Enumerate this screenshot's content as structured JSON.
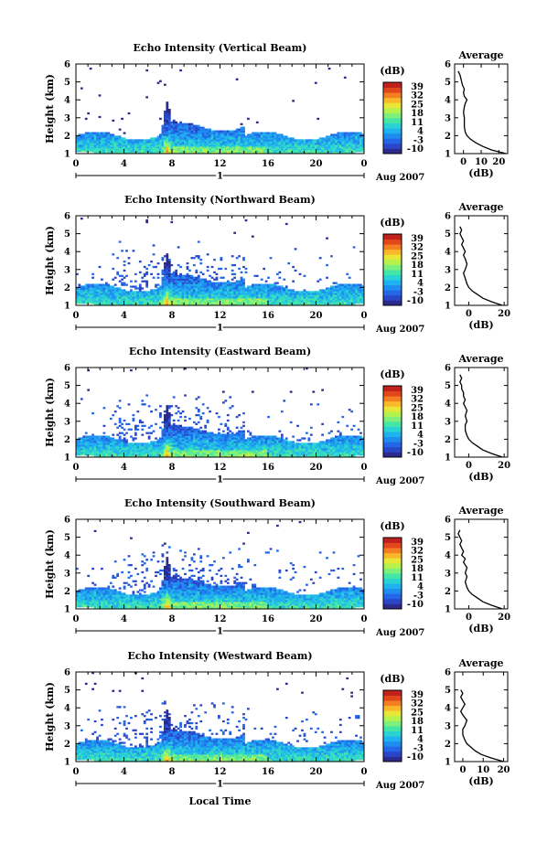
{
  "figure": {
    "x_axis_title": "Local Time",
    "date_label": "Aug 2007",
    "day_label": "1",
    "cbar_unit": "(dB)",
    "avg_title": "Average",
    "avg_xlabel": "(dB)",
    "ylabel": "Height (km)"
  },
  "colormap": [
    "#2c2a8c",
    "#2a46c8",
    "#2466e8",
    "#1f8cf0",
    "#20b2ee",
    "#2ad3d3",
    "#43e6a6",
    "#7cf07a",
    "#b6f24c",
    "#e8e637",
    "#f8b82a",
    "#f47f22",
    "#e2461b",
    "#c0211c"
  ],
  "chart_data": [
    {
      "type": "heatmap",
      "title": "Echo Intensity (Vertical Beam)",
      "x_ticks": [
        "0",
        "4",
        "8",
        "12",
        "16",
        "20",
        "0"
      ],
      "y_ticks": [
        "1",
        "2",
        "3",
        "4",
        "5",
        "6"
      ],
      "xlim": [
        0,
        24
      ],
      "ylim": [
        1,
        6
      ],
      "colorbar": {
        "ticks": [
          "39",
          "32",
          "25",
          "18",
          "11",
          "4",
          "-3",
          "-10"
        ],
        "range": [
          -10,
          39
        ]
      },
      "profile": {
        "x_ticks": [
          "0",
          "10",
          "20"
        ],
        "xlim": [
          -5,
          25
        ],
        "heights": [
          1.0,
          1.2,
          1.4,
          1.6,
          1.8,
          2.0,
          2.2,
          2.5,
          2.8,
          3.0,
          3.3,
          3.6,
          3.8,
          4.0,
          4.2,
          4.4,
          4.6,
          4.8,
          5.0,
          5.2,
          5.4,
          5.6
        ],
        "values": [
          24,
          16,
          11,
          7,
          4,
          2,
          1,
          0.5,
          0.5,
          0.5,
          0,
          0.5,
          1,
          2,
          0.5,
          0,
          0.5,
          -0.5,
          -1,
          -1.5,
          -2,
          -3
        ]
      }
    },
    {
      "type": "heatmap",
      "title": "Echo Intensity (Northward Beam)",
      "x_ticks": [
        "0",
        "4",
        "8",
        "12",
        "16",
        "20",
        "0"
      ],
      "y_ticks": [
        "1",
        "2",
        "3",
        "4",
        "5",
        "6"
      ],
      "xlim": [
        0,
        24
      ],
      "ylim": [
        1,
        6
      ],
      "colorbar": {
        "ticks": [
          "39",
          "32",
          "25",
          "18",
          "11",
          "4",
          "-3",
          "-10"
        ],
        "range": [
          -10,
          39
        ]
      },
      "profile": {
        "x_ticks": [
          "0",
          "20"
        ],
        "xlim": [
          -8,
          22
        ],
        "heights": [
          1.0,
          1.2,
          1.4,
          1.6,
          1.8,
          2.0,
          2.2,
          2.5,
          2.8,
          3.0,
          3.3,
          3.6,
          3.8,
          4.0,
          4.2,
          4.4,
          4.6,
          4.8,
          5.0,
          5.2,
          5.4
        ],
        "values": [
          19,
          13,
          8,
          5,
          2,
          0,
          -1,
          -2,
          -3,
          -2,
          -1,
          -2,
          -3,
          -2,
          -3,
          -4,
          -3,
          -4,
          -5,
          -4,
          -5
        ]
      }
    },
    {
      "type": "heatmap",
      "title": "Echo Intensity (Eastward Beam)",
      "x_ticks": [
        "0",
        "4",
        "8",
        "12",
        "16",
        "20",
        "0"
      ],
      "y_ticks": [
        "1",
        "2",
        "3",
        "4",
        "5",
        "6"
      ],
      "xlim": [
        0,
        24
      ],
      "ylim": [
        1,
        6
      ],
      "colorbar": {
        "ticks": [
          "39",
          "32",
          "25",
          "18",
          "11",
          "4",
          "-3",
          "-10"
        ],
        "range": [
          -10,
          39
        ]
      },
      "profile": {
        "x_ticks": [
          "0",
          "20"
        ],
        "xlim": [
          -8,
          22
        ],
        "heights": [
          1.0,
          1.2,
          1.4,
          1.6,
          1.8,
          2.0,
          2.2,
          2.5,
          2.8,
          3.0,
          3.3,
          3.6,
          3.8,
          4.0,
          4.2,
          4.4,
          4.6,
          4.8,
          5.0,
          5.2,
          5.4,
          5.6
        ],
        "values": [
          19,
          13,
          8,
          5,
          2,
          0,
          -1,
          -2,
          -2,
          -1,
          -2,
          -1,
          -2,
          -3,
          -2,
          -3,
          -3,
          -4,
          -4,
          -5,
          -4,
          -5
        ]
      }
    },
    {
      "type": "heatmap",
      "title": "Echo Intensity (Southward Beam)",
      "x_ticks": [
        "0",
        "4",
        "8",
        "12",
        "16",
        "20",
        "0"
      ],
      "y_ticks": [
        "1",
        "2",
        "3",
        "4",
        "5",
        "6"
      ],
      "xlim": [
        0,
        24
      ],
      "ylim": [
        1,
        6
      ],
      "colorbar": {
        "ticks": [
          "39",
          "32",
          "25",
          "18",
          "11",
          "4",
          "-3",
          "-10"
        ],
        "range": [
          -10,
          39
        ]
      },
      "profile": {
        "x_ticks": [
          "0",
          "20"
        ],
        "xlim": [
          -8,
          22
        ],
        "heights": [
          1.0,
          1.2,
          1.4,
          1.6,
          1.8,
          2.0,
          2.2,
          2.5,
          2.8,
          3.0,
          3.3,
          3.6,
          3.8,
          4.0,
          4.2,
          4.4,
          4.6,
          4.8,
          5.0,
          5.2,
          5.4
        ],
        "values": [
          19,
          13,
          8,
          5,
          2,
          0,
          -1,
          -2,
          -1,
          -2,
          -1,
          -3,
          -2,
          -4,
          -3,
          -4,
          -5,
          -4,
          -5,
          -6,
          -5
        ]
      }
    },
    {
      "type": "heatmap",
      "title": "Echo Intensity (Westward Beam)",
      "x_ticks": [
        "0",
        "4",
        "8",
        "12",
        "16",
        "20",
        "0"
      ],
      "y_ticks": [
        "1",
        "2",
        "3",
        "4",
        "5",
        "6"
      ],
      "xlim": [
        0,
        24
      ],
      "ylim": [
        1,
        6
      ],
      "colorbar": {
        "ticks": [
          "39",
          "32",
          "25",
          "18",
          "11",
          "4",
          "-3",
          "-10"
        ],
        "range": [
          -10,
          39
        ]
      },
      "profile": {
        "x_ticks": [
          "0",
          "10",
          "20"
        ],
        "xlim": [
          -4,
          22
        ],
        "heights": [
          1.0,
          1.2,
          1.4,
          1.6,
          1.8,
          2.0,
          2.2,
          2.5,
          2.8,
          3.0,
          3.3,
          3.6,
          3.8,
          4.0,
          4.2,
          4.4,
          4.6,
          4.8,
          5.0
        ],
        "values": [
          20,
          14,
          9,
          6,
          4,
          2,
          1,
          0,
          0,
          1,
          2,
          0,
          -1,
          0,
          1,
          0,
          -1,
          0,
          -1
        ]
      }
    }
  ]
}
